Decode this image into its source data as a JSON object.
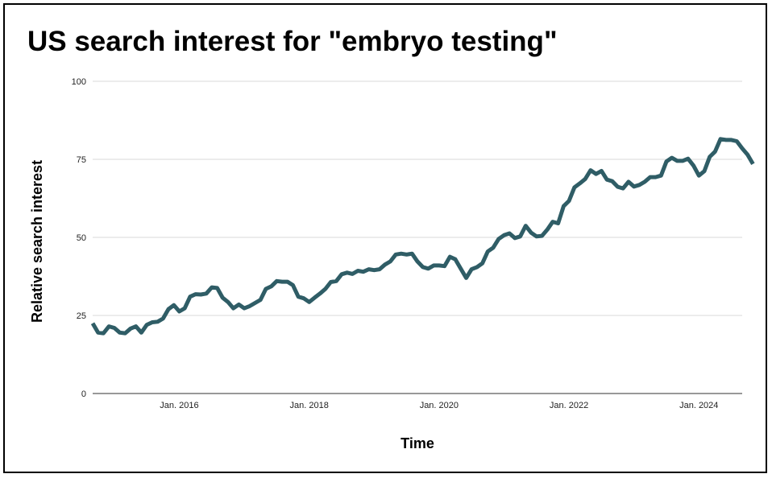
{
  "chart_data": {
    "type": "line",
    "title": "US search interest for \"embryo testing\"",
    "xlabel": "Time",
    "ylabel": "Relative search interest",
    "ylim": [
      0,
      100
    ],
    "yticks": [
      0,
      25,
      50,
      75,
      100
    ],
    "xlim": [
      "2014-09",
      "2024-09"
    ],
    "xticks": [
      {
        "date": "2016-01",
        "label": "Jan. 2016"
      },
      {
        "date": "2018-01",
        "label": "Jan. 2018"
      },
      {
        "date": "2020-01",
        "label": "Jan. 2020"
      },
      {
        "date": "2022-01",
        "label": "Jan. 2022"
      },
      {
        "date": "2024-01",
        "label": "Jan. 2024"
      }
    ],
    "grid": true,
    "legend": "none",
    "colors": {
      "line": "#2f5d66",
      "grid": "#d9d9d9",
      "axis": "#333333"
    },
    "series": [
      {
        "points": [
          [
            "2014-09",
            22.5
          ],
          [
            "2014-10",
            19.5
          ],
          [
            "2014-11",
            19.3
          ],
          [
            "2014-12",
            21.5
          ],
          [
            "2015-01",
            21.0
          ],
          [
            "2015-02",
            19.5
          ],
          [
            "2015-03",
            19.3
          ],
          [
            "2015-04",
            20.8
          ],
          [
            "2015-05",
            21.5
          ],
          [
            "2015-06",
            19.5
          ],
          [
            "2015-07",
            22.0
          ],
          [
            "2015-08",
            22.8
          ],
          [
            "2015-09",
            23.0
          ],
          [
            "2015-10",
            24.0
          ],
          [
            "2015-11",
            27.0
          ],
          [
            "2015-12",
            28.3
          ],
          [
            "2016-01",
            26.3
          ],
          [
            "2016-02",
            27.3
          ],
          [
            "2016-03",
            31.0
          ],
          [
            "2016-04",
            31.8
          ],
          [
            "2016-05",
            31.7
          ],
          [
            "2016-06",
            32.0
          ],
          [
            "2016-07",
            34.0
          ],
          [
            "2016-08",
            33.8
          ],
          [
            "2016-09",
            30.7
          ],
          [
            "2016-10",
            29.3
          ],
          [
            "2016-11",
            27.3
          ],
          [
            "2016-12",
            28.5
          ],
          [
            "2017-01",
            27.3
          ],
          [
            "2017-02",
            28.0
          ],
          [
            "2017-03",
            29.0
          ],
          [
            "2017-04",
            30.0
          ],
          [
            "2017-05",
            33.5
          ],
          [
            "2017-06",
            34.3
          ],
          [
            "2017-07",
            36.0
          ],
          [
            "2017-08",
            35.8
          ],
          [
            "2017-09",
            35.8
          ],
          [
            "2017-10",
            34.7
          ],
          [
            "2017-11",
            31.0
          ],
          [
            "2017-12",
            30.5
          ],
          [
            "2018-01",
            29.3
          ],
          [
            "2018-02",
            30.7
          ],
          [
            "2018-03",
            32.0
          ],
          [
            "2018-04",
            33.5
          ],
          [
            "2018-05",
            35.7
          ],
          [
            "2018-06",
            36.0
          ],
          [
            "2018-07",
            38.2
          ],
          [
            "2018-08",
            38.7
          ],
          [
            "2018-09",
            38.3
          ],
          [
            "2018-10",
            39.3
          ],
          [
            "2018-11",
            39.0
          ],
          [
            "2018-12",
            39.8
          ],
          [
            "2019-01",
            39.5
          ],
          [
            "2019-02",
            39.8
          ],
          [
            "2019-03",
            41.3
          ],
          [
            "2019-04",
            42.3
          ],
          [
            "2019-05",
            44.5
          ],
          [
            "2019-06",
            44.8
          ],
          [
            "2019-07",
            44.5
          ],
          [
            "2019-08",
            44.8
          ],
          [
            "2019-09",
            42.3
          ],
          [
            "2019-10",
            40.5
          ],
          [
            "2019-11",
            40.0
          ],
          [
            "2019-12",
            41.0
          ],
          [
            "2020-01",
            41.0
          ],
          [
            "2020-02",
            40.8
          ],
          [
            "2020-03",
            43.8
          ],
          [
            "2020-04",
            43.0
          ],
          [
            "2020-05",
            40.0
          ],
          [
            "2020-06",
            37.0
          ],
          [
            "2020-07",
            39.8
          ],
          [
            "2020-08",
            40.5
          ],
          [
            "2020-09",
            41.7
          ],
          [
            "2020-10",
            45.5
          ],
          [
            "2020-11",
            46.7
          ],
          [
            "2020-12",
            49.5
          ],
          [
            "2021-01",
            50.7
          ],
          [
            "2021-02",
            51.3
          ],
          [
            "2021-03",
            49.8
          ],
          [
            "2021-04",
            50.3
          ],
          [
            "2021-05",
            53.7
          ],
          [
            "2021-06",
            51.5
          ],
          [
            "2021-07",
            50.3
          ],
          [
            "2021-08",
            50.5
          ],
          [
            "2021-09",
            52.5
          ],
          [
            "2021-10",
            55.0
          ],
          [
            "2021-11",
            54.5
          ],
          [
            "2021-12",
            60.0
          ],
          [
            "2022-01",
            61.7
          ],
          [
            "2022-02",
            66.0
          ],
          [
            "2022-03",
            67.3
          ],
          [
            "2022-04",
            68.7
          ],
          [
            "2022-05",
            71.5
          ],
          [
            "2022-06",
            70.3
          ],
          [
            "2022-07",
            71.3
          ],
          [
            "2022-08",
            68.5
          ],
          [
            "2022-09",
            68.0
          ],
          [
            "2022-10",
            66.2
          ],
          [
            "2022-11",
            65.7
          ],
          [
            "2022-12",
            67.8
          ],
          [
            "2023-01",
            66.3
          ],
          [
            "2023-02",
            66.8
          ],
          [
            "2023-03",
            67.8
          ],
          [
            "2023-04",
            69.3
          ],
          [
            "2023-05",
            69.3
          ],
          [
            "2023-06",
            69.8
          ],
          [
            "2023-07",
            74.3
          ],
          [
            "2023-08",
            75.5
          ],
          [
            "2023-09",
            74.5
          ],
          [
            "2023-10",
            74.5
          ],
          [
            "2023-11",
            75.2
          ],
          [
            "2023-12",
            73.0
          ],
          [
            "2024-01",
            69.8
          ],
          [
            "2024-02",
            71.2
          ],
          [
            "2024-03",
            75.8
          ],
          [
            "2024-04",
            77.5
          ],
          [
            "2024-05",
            81.5
          ],
          [
            "2024-06",
            81.2
          ],
          [
            "2024-07",
            81.2
          ],
          [
            "2024-08",
            80.8
          ],
          [
            "2024-09",
            78.5
          ],
          [
            "2024-10",
            76.5
          ],
          [
            "2024-11",
            73.5
          ]
        ]
      }
    ]
  }
}
